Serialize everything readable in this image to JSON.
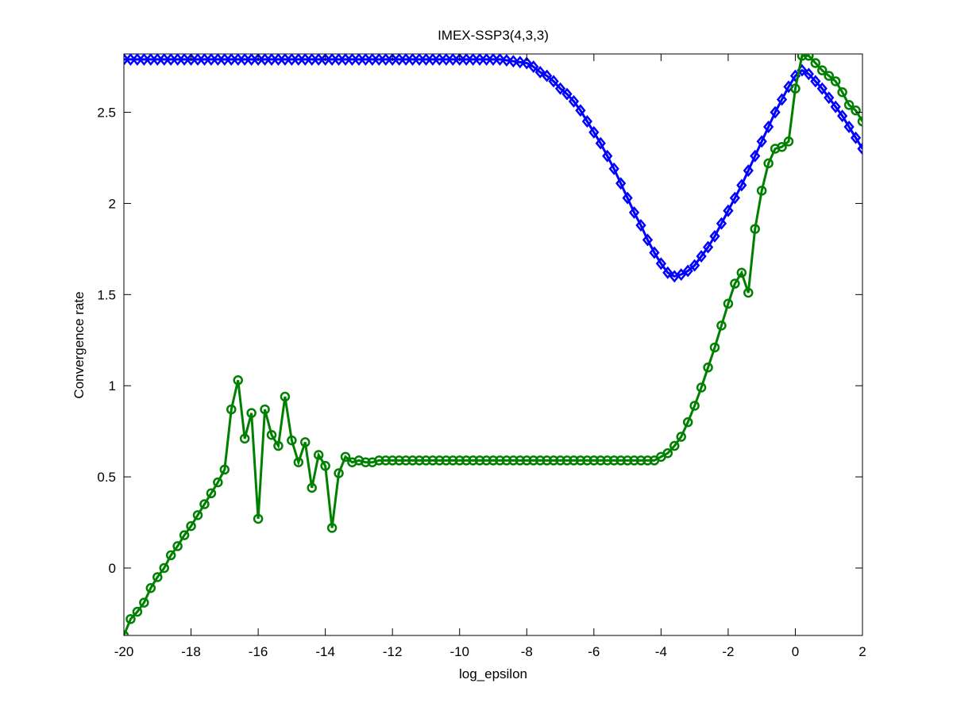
{
  "chart_data": {
    "type": "line",
    "title": "IMEX-SSP3(4,3,3)",
    "x_label": "log_epsilon",
    "y_label": "Convergence rate",
    "x": [
      -20,
      -19.8,
      -19.6,
      -19.4,
      -19.2,
      -19,
      -18.8,
      -18.6,
      -18.4,
      -18.2,
      -18,
      -17.8,
      -17.6,
      -17.4,
      -17.2,
      -17,
      -16.8,
      -16.6,
      -16.4,
      -16.2,
      -16,
      -15.8,
      -15.6,
      -15.4,
      -15.2,
      -15,
      -14.8,
      -14.6,
      -14.4,
      -14.2,
      -14,
      -13.8,
      -13.6,
      -13.4,
      -13.2,
      -13,
      -12.8,
      -12.6,
      -12.4,
      -12.2,
      -12,
      -11.8,
      -11.6,
      -11.4,
      -11.2,
      -11,
      -10.8,
      -10.6,
      -10.4,
      -10.2,
      -10,
      -9.8,
      -9.6,
      -9.4,
      -9.2,
      -9,
      -8.8,
      -8.6,
      -8.4,
      -8.2,
      -8,
      -7.8,
      -7.6,
      -7.4,
      -7.2,
      -7,
      -6.8,
      -6.6,
      -6.4,
      -6.2,
      -6,
      -5.8,
      -5.6,
      -5.4,
      -5.2,
      -5,
      -4.8,
      -4.6,
      -4.4,
      -4.2,
      -4,
      -3.8,
      -3.6,
      -3.4,
      -3.2,
      -3,
      -2.8,
      -2.6,
      -2.4,
      -2.2,
      -2,
      -1.8,
      -1.6,
      -1.4,
      -1.2,
      -1,
      -0.8,
      -0.6,
      -0.4,
      -0.2,
      0,
      0.2,
      0.4,
      0.6,
      0.8,
      1,
      1.2,
      1.4,
      1.6,
      1.8,
      2
    ],
    "series": [
      {
        "color": "#0000ff",
        "marker": "diamond",
        "values": [
          2.79,
          2.79,
          2.79,
          2.79,
          2.79,
          2.79,
          2.79,
          2.79,
          2.79,
          2.79,
          2.79,
          2.79,
          2.79,
          2.79,
          2.79,
          2.79,
          2.79,
          2.79,
          2.79,
          2.79,
          2.79,
          2.79,
          2.79,
          2.79,
          2.79,
          2.79,
          2.79,
          2.79,
          2.79,
          2.79,
          2.79,
          2.79,
          2.79,
          2.79,
          2.79,
          2.79,
          2.79,
          2.79,
          2.79,
          2.79,
          2.79,
          2.79,
          2.79,
          2.79,
          2.79,
          2.79,
          2.79,
          2.79,
          2.79,
          2.79,
          2.79,
          2.79,
          2.79,
          2.79,
          2.79,
          2.79,
          2.79,
          2.785,
          2.78,
          2.775,
          2.77,
          2.75,
          2.72,
          2.7,
          2.67,
          2.63,
          2.6,
          2.56,
          2.51,
          2.45,
          2.39,
          2.33,
          2.26,
          2.19,
          2.11,
          2.03,
          1.95,
          1.88,
          1.8,
          1.73,
          1.67,
          1.62,
          1.6,
          1.61,
          1.63,
          1.66,
          1.71,
          1.76,
          1.82,
          1.89,
          1.96,
          2.03,
          2.1,
          2.18,
          2.26,
          2.34,
          2.42,
          2.5,
          2.57,
          2.64,
          2.7,
          2.73,
          2.71,
          2.67,
          2.63,
          2.58,
          2.53,
          2.48,
          2.42,
          2.36,
          2.3
        ]
      },
      {
        "color": "#008000",
        "marker": "circle",
        "values": [
          -0.37,
          -0.28,
          -0.24,
          -0.19,
          -0.11,
          -0.05,
          0,
          0.07,
          0.12,
          0.18,
          0.23,
          0.29,
          0.35,
          0.41,
          0.47,
          0.54,
          0.87,
          1.03,
          0.71,
          0.85,
          0.27,
          0.87,
          0.73,
          0.67,
          0.94,
          0.7,
          0.58,
          0.69,
          0.44,
          0.62,
          0.56,
          0.22,
          0.52,
          0.61,
          0.58,
          0.59,
          0.58,
          0.58,
          0.59,
          0.59,
          0.59,
          0.59,
          0.59,
          0.59,
          0.59,
          0.59,
          0.59,
          0.59,
          0.59,
          0.59,
          0.59,
          0.59,
          0.59,
          0.59,
          0.59,
          0.59,
          0.59,
          0.59,
          0.59,
          0.59,
          0.59,
          0.59,
          0.59,
          0.59,
          0.59,
          0.59,
          0.59,
          0.59,
          0.59,
          0.59,
          0.59,
          0.59,
          0.59,
          0.59,
          0.59,
          0.59,
          0.59,
          0.59,
          0.59,
          0.59,
          0.61,
          0.63,
          0.67,
          0.72,
          0.8,
          0.89,
          0.99,
          1.1,
          1.21,
          1.33,
          1.45,
          1.56,
          1.62,
          1.51,
          1.86,
          2.07,
          2.22,
          2.3,
          2.31,
          2.34,
          2.63,
          2.81,
          2.81,
          2.77,
          2.73,
          2.7,
          2.67,
          2.61,
          2.54,
          2.51,
          2.45
        ]
      }
    ],
    "xlim": [
      -20,
      2
    ],
    "xticks": [
      -20,
      -18,
      -16,
      -14,
      -12,
      -10,
      -8,
      -6,
      -4,
      -2,
      0,
      2
    ],
    "ylim": [
      -0.37,
      2.82
    ],
    "yticks": [
      0,
      0.5,
      1,
      1.5,
      2,
      2.5
    ]
  }
}
